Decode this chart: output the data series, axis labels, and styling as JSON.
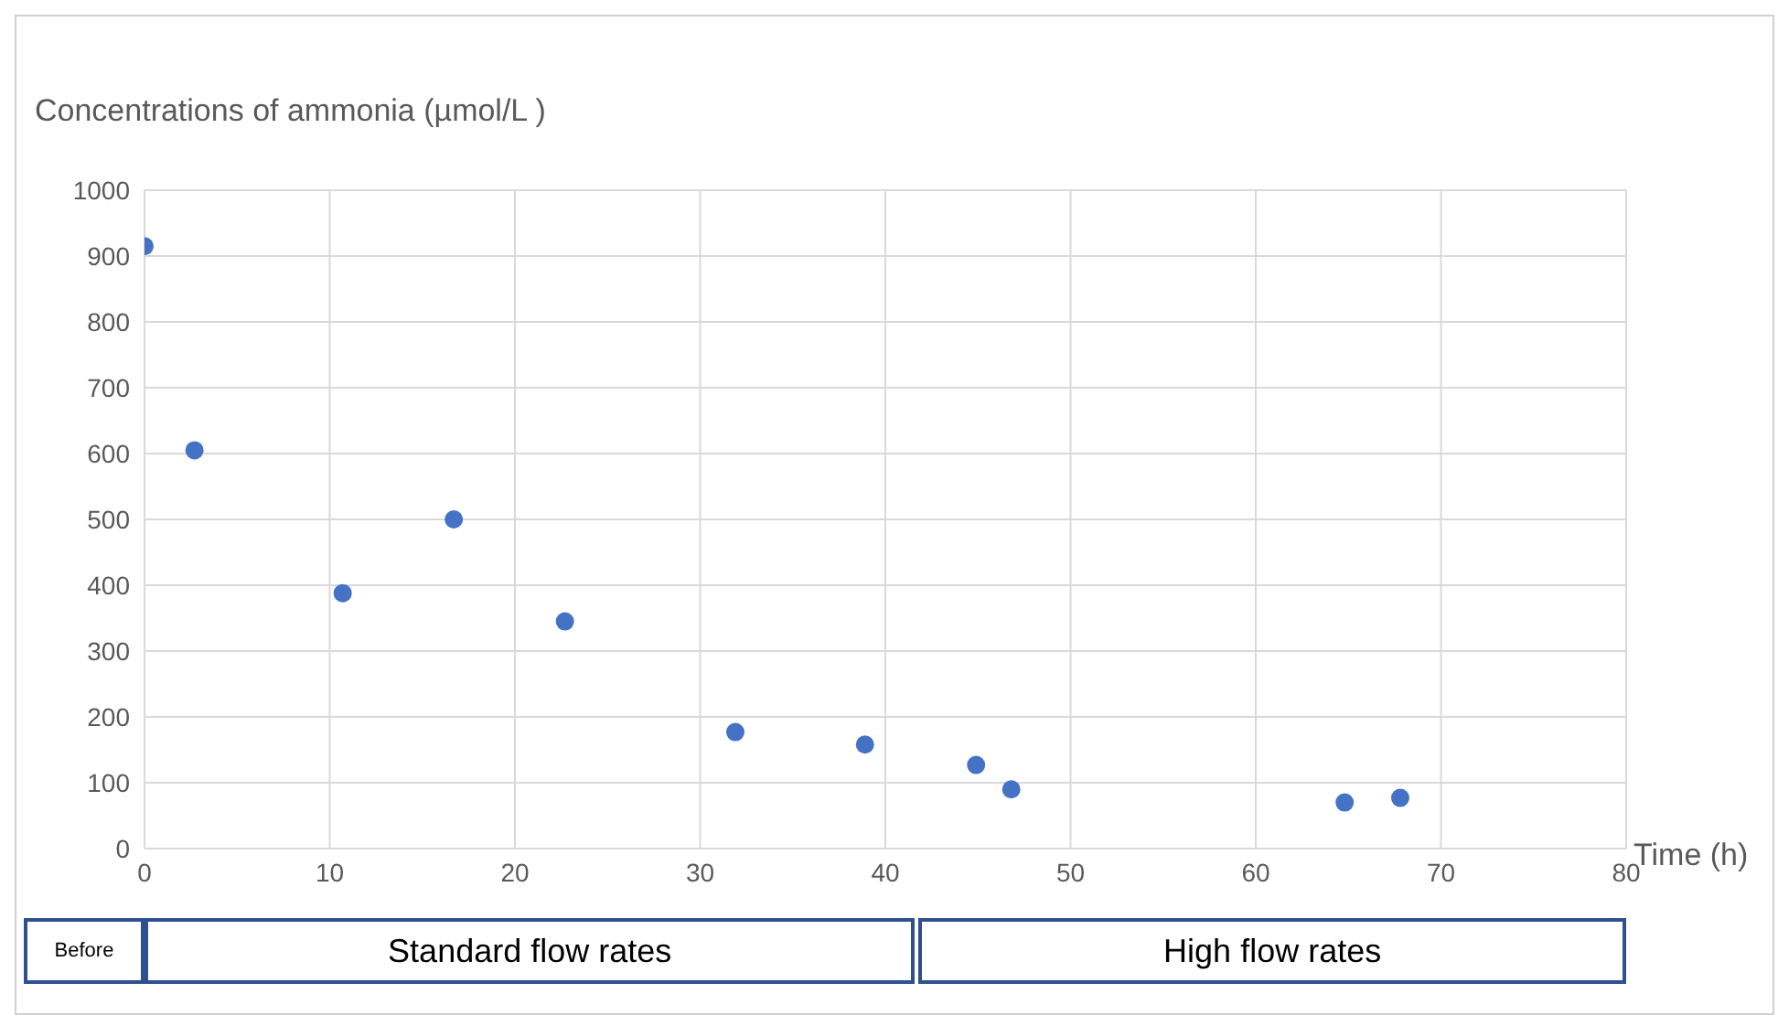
{
  "chart_data": {
    "type": "scatter",
    "ylabel": "Concentrations of ammonia (µmol/L )",
    "xlabel": "Time (h)",
    "series": [
      {
        "color": "#4472c4",
        "x": [
          0,
          2.7,
          10.7,
          16.7,
          22.7,
          31.9,
          38.9,
          44.9,
          46.8,
          64.8,
          67.8
        ],
        "values": [
          915,
          605,
          388,
          500,
          345,
          177,
          158,
          127,
          90,
          70,
          77
        ]
      }
    ],
    "xlim": [
      0,
      80
    ],
    "xticks": [
      0,
      10,
      20,
      30,
      40,
      50,
      60,
      70,
      80
    ],
    "ylim": [
      0,
      1000
    ],
    "yticks": [
      0,
      100,
      200,
      300,
      400,
      500,
      600,
      700,
      800,
      900,
      1000
    ],
    "grid": true,
    "marker": "circle",
    "annotations": [
      "Before",
      "Standard flow rates",
      "High flow rates"
    ]
  }
}
